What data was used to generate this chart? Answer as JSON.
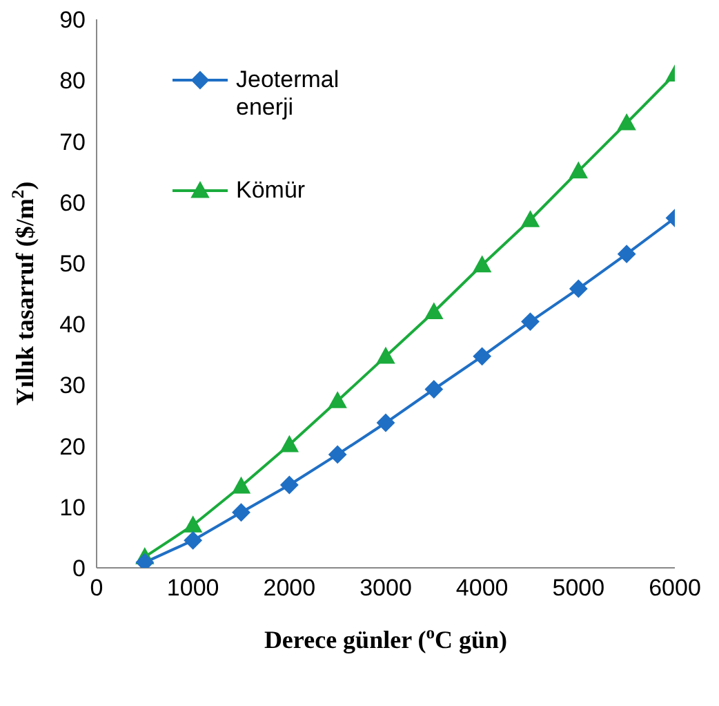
{
  "chart_data": {
    "type": "line",
    "xlabel": "Derece günler ($^{o}$C gün)",
    "ylabel": "Yıllık tasarruf ($/m$^{2}$)",
    "x": [
      500,
      1000,
      1500,
      2000,
      2500,
      3000,
      3500,
      4000,
      4500,
      5000,
      5500,
      6000
    ],
    "series": [
      {
        "name": "Jeotermal enerji",
        "color": "#1f6fc5",
        "marker": "diamond",
        "values": [
          0.9,
          4.5,
          9.1,
          13.6,
          18.6,
          23.8,
          29.3,
          34.7,
          40.4,
          45.8,
          51.5,
          57.4
        ]
      },
      {
        "name": "Kömür",
        "color": "#1aab3c",
        "marker": "triangle",
        "values": [
          1.8,
          7.0,
          13.4,
          20.2,
          27.4,
          34.7,
          42.0,
          49.7,
          57.1,
          65.1,
          73.0,
          81.0
        ]
      }
    ],
    "xlim": [
      0,
      6000
    ],
    "xticks": [
      0,
      1000,
      2000,
      3000,
      4000,
      5000,
      6000
    ],
    "ylim": [
      0,
      90
    ],
    "yticks": [
      0,
      10,
      20,
      30,
      40,
      50,
      60,
      70,
      80,
      90
    ],
    "grid": false,
    "legend": "top left"
  }
}
